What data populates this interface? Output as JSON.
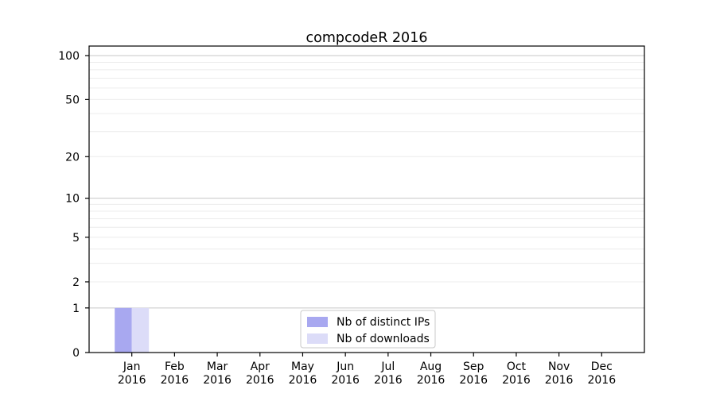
{
  "chart_data": {
    "type": "bar",
    "title": "compcodeR 2016",
    "year_label": "2016",
    "categories": [
      "Jan",
      "Feb",
      "Mar",
      "Apr",
      "May",
      "Jun",
      "Jul",
      "Aug",
      "Sep",
      "Oct",
      "Nov",
      "Dec"
    ],
    "series": [
      {
        "name": "Nb of distinct IPs",
        "color": "#a8a8f0",
        "values": [
          1,
          0,
          0,
          0,
          0,
          0,
          0,
          0,
          0,
          0,
          0,
          0
        ]
      },
      {
        "name": "Nb of downloads",
        "color": "#dcdcf8",
        "values": [
          1,
          0,
          0,
          0,
          0,
          0,
          0,
          0,
          0,
          0,
          0,
          0
        ]
      }
    ],
    "xlabel": "",
    "ylabel": "",
    "yticks": [
      0,
      1,
      2,
      5,
      10,
      20,
      50,
      100
    ],
    "ylim": [
      0,
      110
    ],
    "yscale": "log1p",
    "grid": true,
    "minor_grid_values": [
      2,
      3,
      4,
      5,
      6,
      7,
      8,
      9,
      20,
      30,
      40,
      50,
      60,
      70,
      80,
      90
    ],
    "major_grid_values": [
      1,
      10,
      100
    ],
    "legend_position": "lower center",
    "colors": {
      "background": "#ffffff",
      "axis": "#000000",
      "grid_minor": "#ececec",
      "grid_major": "#c7c7c7",
      "legend_border": "#c8c8c8",
      "legend_background": "#ffffff"
    }
  }
}
